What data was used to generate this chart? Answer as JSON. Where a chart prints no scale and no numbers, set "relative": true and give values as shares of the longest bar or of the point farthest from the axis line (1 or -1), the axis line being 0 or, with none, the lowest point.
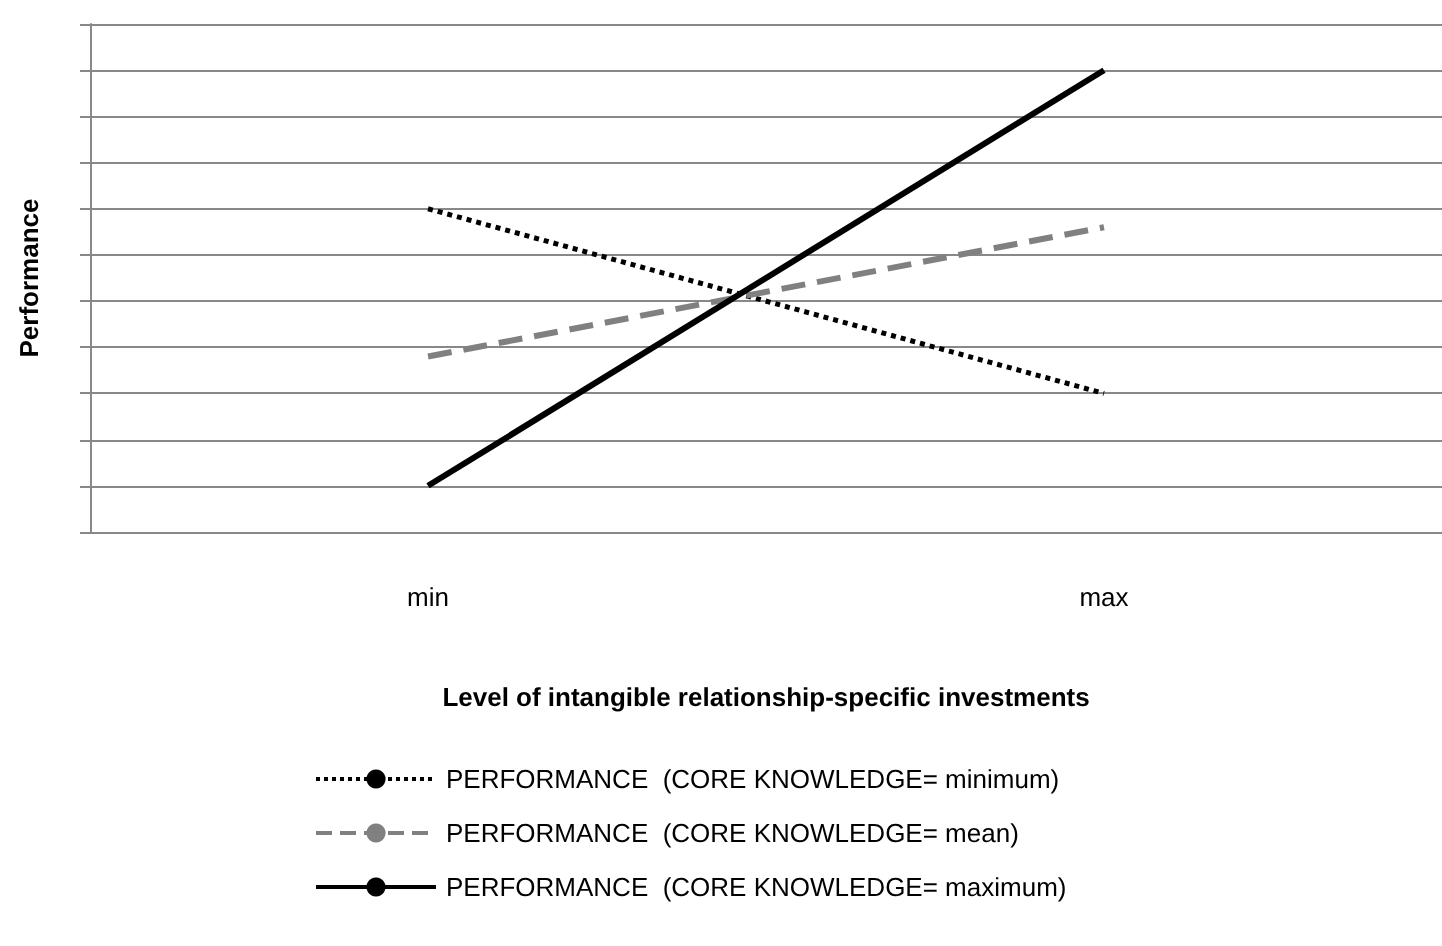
{
  "chart_data": {
    "type": "line",
    "relative": true,
    "xlabel": "Level of intangible relationship-specific investments",
    "ylabel": "Performance",
    "categories": [
      "min",
      "max"
    ],
    "series": [
      {
        "name": "PERFORMANCE  (CORE KNOWLEDGE= minimum)",
        "color": "#000000",
        "line_style": "dotted",
        "values": [
          0.7,
          0.3
        ]
      },
      {
        "name": "PERFORMANCE  (CORE KNOWLEDGE= mean)",
        "color": "#808080",
        "line_style": "dashed",
        "values": [
          0.38,
          0.66
        ]
      },
      {
        "name": "PERFORMANCE  (CORE KNOWLEDGE= maximum)",
        "color": "#000000",
        "line_style": "solid",
        "values": [
          0.1,
          1
        ]
      }
    ],
    "marker": "none",
    "grid": "y",
    "legend": "bottom"
  }
}
